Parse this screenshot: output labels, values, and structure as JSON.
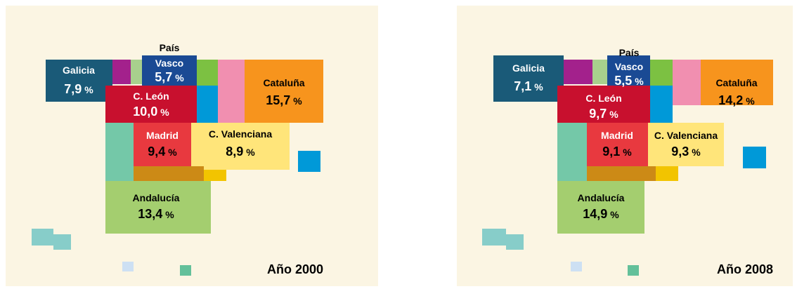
{
  "panels": [
    {
      "year": "Año 2000",
      "regions": [
        {
          "name": [
            "Galicia"
          ],
          "value": "7,9",
          "unit": "%"
        },
        {
          "name": [
            "País",
            "Vasco"
          ],
          "value": "5,7",
          "unit": "%"
        },
        {
          "name": [
            "Cataluña"
          ],
          "value": "15,7",
          "unit": "%"
        },
        {
          "name": [
            "C. León"
          ],
          "value": "10,0",
          "unit": "%"
        },
        {
          "name": [
            "Madrid"
          ],
          "value": "9,4",
          "unit": "%"
        },
        {
          "name": [
            "C. Valenciana"
          ],
          "value": "8,9",
          "unit": "%"
        },
        {
          "name": [
            "Andalucía"
          ],
          "value": "13,4",
          "unit": "%"
        }
      ]
    },
    {
      "year": "Año 2008",
      "regions": [
        {
          "name": [
            "Galicia"
          ],
          "value": "7,1",
          "unit": "%"
        },
        {
          "name": [
            "País",
            "Vasco"
          ],
          "value": "5,5",
          "unit": "%"
        },
        {
          "name": [
            "Cataluña"
          ],
          "value": "14,2",
          "unit": "%"
        },
        {
          "name": [
            "C. León"
          ],
          "value": "9,7",
          "unit": "%"
        },
        {
          "name": [
            "Madrid"
          ],
          "value": "9,1",
          "unit": "%"
        },
        {
          "name": [
            "C. Valenciana"
          ],
          "value": "9,3",
          "unit": "%"
        },
        {
          "name": [
            "Andalucía"
          ],
          "value": "14,9",
          "unit": "%"
        }
      ]
    }
  ]
}
